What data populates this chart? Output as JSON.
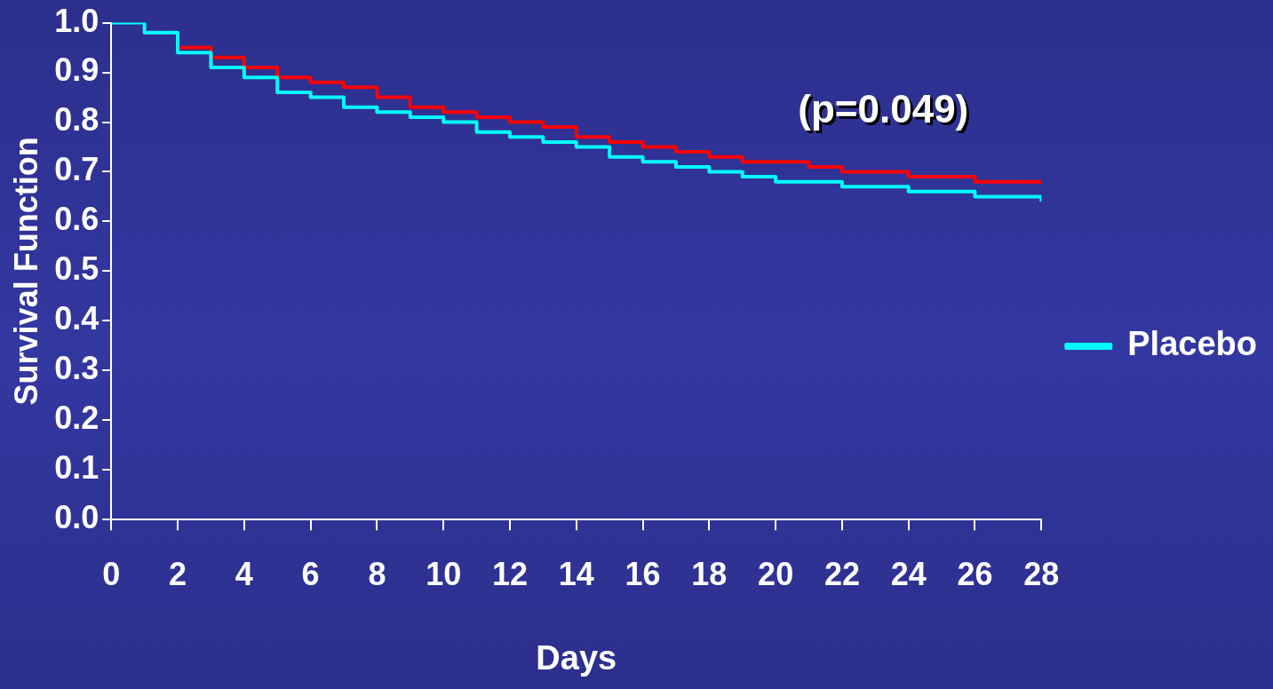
{
  "chart_data": {
    "type": "step",
    "xlabel": "Days",
    "ylabel": "Survival Function",
    "x": [
      0,
      1,
      2,
      3,
      4,
      5,
      6,
      7,
      8,
      9,
      10,
      11,
      12,
      13,
      14,
      15,
      16,
      17,
      18,
      19,
      20,
      21,
      22,
      23,
      24,
      25,
      26,
      27,
      28
    ],
    "series": [
      {
        "color": "#ff0000",
        "values": [
          null,
          null,
          0.95,
          0.93,
          0.91,
          0.89,
          0.88,
          0.87,
          0.85,
          0.83,
          0.82,
          0.81,
          0.8,
          0.79,
          0.77,
          0.76,
          0.75,
          0.74,
          0.73,
          0.72,
          0.72,
          0.71,
          0.7,
          0.7,
          0.69,
          0.69,
          0.68,
          0.68,
          0.68
        ]
      },
      {
        "name": "Placebo",
        "color": "#00ffff",
        "values": [
          1.0,
          0.98,
          0.94,
          0.91,
          0.89,
          0.86,
          0.85,
          0.83,
          0.82,
          0.81,
          0.8,
          0.78,
          0.77,
          0.76,
          0.75,
          0.73,
          0.72,
          0.71,
          0.7,
          0.69,
          0.68,
          0.68,
          0.67,
          0.67,
          0.66,
          0.66,
          0.65,
          0.65,
          0.64
        ]
      }
    ],
    "xlim": [
      0,
      28
    ],
    "xticks": [
      0,
      2,
      4,
      6,
      8,
      10,
      12,
      14,
      16,
      18,
      20,
      22,
      24,
      26,
      28
    ],
    "ylim": [
      0,
      1
    ],
    "yticks": [
      {
        "value": 0,
        "label": "0.0"
      },
      {
        "value": 0.1,
        "label": "0.1"
      },
      {
        "value": 0.2,
        "label": "0.2"
      },
      {
        "value": 0.3,
        "label": "0.3"
      },
      {
        "value": 0.4,
        "label": "0.4"
      },
      {
        "value": 0.5,
        "label": "0.5"
      },
      {
        "value": 0.6,
        "label": "0.6"
      },
      {
        "value": 0.7,
        "label": "0.7"
      },
      {
        "value": 0.8,
        "label": "0.8"
      },
      {
        "value": 0.9,
        "label": "0.9"
      },
      {
        "value": 1,
        "label": "1.0"
      }
    ],
    "annotations": [
      "(p=0.049)"
    ],
    "legend": "right",
    "grid": false,
    "marker": "none",
    "line_style": "solid"
  }
}
